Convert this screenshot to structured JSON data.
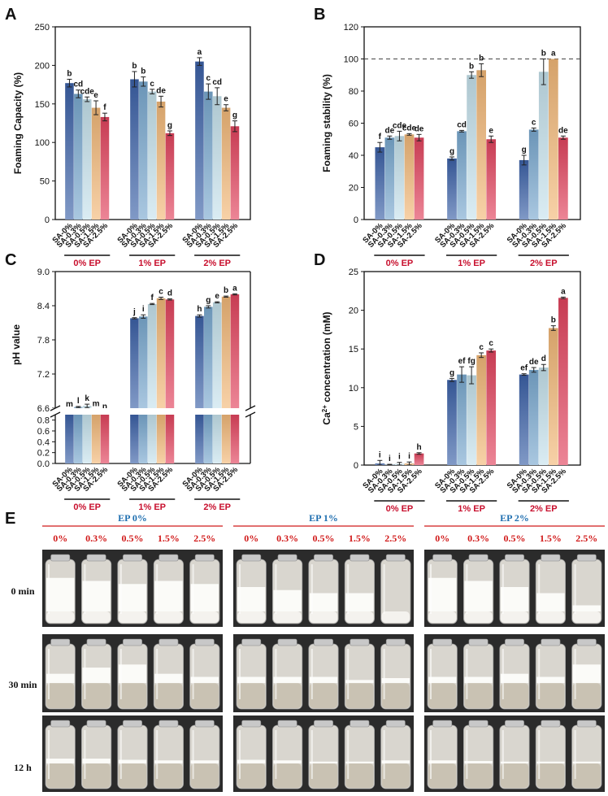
{
  "series_labels": [
    "SA-0%",
    "SA-0.3%",
    "SA-0.5%",
    "SA-1.5%",
    "SA-2.5%"
  ],
  "series_colors": [
    "#3c62a8",
    "#7aa9d0",
    "#c6e2ec",
    "#f2b878",
    "#e2445e"
  ],
  "colors": {
    "group_label": "#c8102e",
    "e_header": "#1f6fb0",
    "e_concentration": "#d11a1a"
  },
  "chart_data": [
    {
      "panel": "A",
      "type": "bar",
      "ylabel": "Foaming Capacity (%)",
      "ylim": [
        0,
        250
      ],
      "yticks": [
        0,
        50,
        100,
        150,
        200,
        250
      ],
      "categories": [
        "0% EP",
        "1% EP",
        "2% EP"
      ],
      "series": [
        {
          "name": "SA-0%",
          "values": [
            177,
            182,
            205
          ],
          "errors": [
            5,
            10,
            5
          ],
          "letters": [
            "b",
            "b",
            "a"
          ]
        },
        {
          "name": "SA-0.3%",
          "values": [
            163,
            179,
            166
          ],
          "errors": [
            5,
            6,
            10
          ],
          "letters": [
            "cd",
            "b",
            "c"
          ]
        },
        {
          "name": "SA-0.5%",
          "values": [
            156,
            166,
            160
          ],
          "errors": [
            3,
            3,
            11
          ],
          "letters": [
            "cde",
            "c",
            "cd"
          ]
        },
        {
          "name": "SA-1.5%",
          "values": [
            145,
            153,
            145
          ],
          "errors": [
            9,
            7,
            4
          ],
          "letters": [
            "e",
            "de",
            "e"
          ]
        },
        {
          "name": "SA-2.5%",
          "values": [
            133,
            112,
            121
          ],
          "errors": [
            5,
            3,
            7
          ],
          "letters": [
            "f",
            "g",
            "g"
          ]
        }
      ]
    },
    {
      "panel": "B",
      "type": "bar",
      "ylabel": "Foaming stability (%)",
      "ylim": [
        0,
        120
      ],
      "yticks": [
        0,
        20,
        40,
        60,
        80,
        100,
        120
      ],
      "reference_line": 100,
      "categories": [
        "0% EP",
        "1% EP",
        "2% EP"
      ],
      "series": [
        {
          "name": "SA-0%",
          "values": [
            45,
            38,
            37
          ],
          "errors": [
            3,
            1,
            3
          ],
          "letters": [
            "f",
            "g",
            "g"
          ]
        },
        {
          "name": "SA-0.3%",
          "values": [
            51,
            55,
            56
          ],
          "errors": [
            1,
            0.5,
            1
          ],
          "letters": [
            "de",
            "cd",
            "c"
          ]
        },
        {
          "name": "SA-0.5%",
          "values": [
            52,
            90,
            92
          ],
          "errors": [
            3,
            2,
            8
          ],
          "letters": [
            "cde",
            "b",
            "b"
          ]
        },
        {
          "name": "SA-1.5%",
          "values": [
            53,
            93,
            100
          ],
          "errors": [
            0.5,
            4,
            0
          ],
          "letters": [
            "cde",
            "b",
            "a"
          ]
        },
        {
          "name": "SA-2.5%",
          "values": [
            51,
            50,
            51
          ],
          "errors": [
            2,
            2,
            1
          ],
          "letters": [
            "de",
            "e",
            "de"
          ]
        }
      ]
    },
    {
      "panel": "C",
      "type": "bar",
      "ylabel": "pH value",
      "axis_break": true,
      "upper_range": [
        6.6,
        9.0
      ],
      "upper_ticks": [
        6.6,
        7.2,
        7.8,
        8.4,
        9.0
      ],
      "lower_range": [
        0.0,
        0.9
      ],
      "lower_ticks": [
        0.0,
        0.2,
        0.4,
        0.6,
        0.8
      ],
      "categories": [
        "0% EP",
        "1% EP",
        "2% EP"
      ],
      "series": [
        {
          "name": "SA-0%",
          "values": [
            6.56,
            8.18,
            8.22
          ],
          "errors": [
            0.01,
            0.01,
            0.02
          ],
          "letters": [
            "m",
            "j",
            "h"
          ]
        },
        {
          "name": "SA-0.3%",
          "values": [
            6.62,
            8.21,
            8.38
          ],
          "errors": [
            0.01,
            0.03,
            0.02
          ],
          "letters": [
            "l",
            "i",
            "g"
          ]
        },
        {
          "name": "SA-0.5%",
          "values": [
            6.64,
            8.43,
            8.46
          ],
          "errors": [
            0.03,
            0.01,
            0.01
          ],
          "letters": [
            "k",
            "f",
            "e"
          ]
        },
        {
          "name": "SA-1.5%",
          "values": [
            6.57,
            8.53,
            8.56
          ],
          "errors": [
            0.01,
            0.02,
            0.01
          ],
          "letters": [
            "m",
            "c",
            "b"
          ]
        },
        {
          "name": "SA-2.5%",
          "values": [
            6.52,
            8.51,
            8.6
          ],
          "errors": [
            0.01,
            0.01,
            0.01
          ],
          "letters": [
            "n",
            "d",
            "a"
          ]
        }
      ]
    },
    {
      "panel": "D",
      "type": "bar",
      "ylabel_main": "Ca",
      "ylabel_sup": "2+",
      "ylabel_rest": " concentration (mM)",
      "ylim": [
        0,
        25
      ],
      "yticks": [
        0,
        5,
        10,
        15,
        20,
        25
      ],
      "categories": [
        "0% EP",
        "1% EP",
        "2% EP"
      ],
      "series": [
        {
          "name": "SA-0%",
          "values": [
            0.2,
            11.0,
            11.7
          ],
          "errors": [
            0.4,
            0.2,
            0.1
          ],
          "letters": [
            "i",
            "g",
            "ef"
          ]
        },
        {
          "name": "SA-0.3%",
          "values": [
            0.05,
            11.7,
            12.3
          ],
          "errors": [
            0.05,
            1.0,
            0.3
          ],
          "letters": [
            "i",
            "ef",
            "de"
          ]
        },
        {
          "name": "SA-0.5%",
          "values": [
            0.15,
            11.6,
            12.6
          ],
          "errors": [
            0.2,
            1.1,
            0.4
          ],
          "letters": [
            "i",
            "fg",
            "d"
          ]
        },
        {
          "name": "SA-1.5%",
          "values": [
            0.2,
            14.2,
            17.7
          ],
          "errors": [
            0.2,
            0.3,
            0.3
          ],
          "letters": [
            "i",
            "c",
            "b"
          ]
        },
        {
          "name": "SA-2.5%",
          "values": [
            1.5,
            14.8,
            21.6
          ],
          "errors": [
            0.1,
            0.2,
            0.1
          ],
          "letters": [
            "h",
            "c",
            "a"
          ]
        }
      ]
    }
  ],
  "panel_letters": [
    "A",
    "B",
    "C",
    "D",
    "E"
  ],
  "panel_e": {
    "groups": [
      "EP 0%",
      "EP 1%",
      "EP 2%"
    ],
    "concentrations": [
      "0%",
      "0.3%",
      "0.5%",
      "1.5%",
      "2.5%"
    ],
    "times": [
      "0 min",
      "30 min",
      "12 h"
    ],
    "foam_fraction": [
      [
        [
          0.55,
          0.5,
          0.45,
          0.5,
          0.45
        ],
        [
          0.4,
          0.35,
          0.3,
          0.3,
          0.0
        ],
        [
          0.55,
          0.5,
          0.4,
          0.3,
          0.1
        ]
      ],
      [
        [
          0.15,
          0.25,
          0.3,
          0.15,
          0.1
        ],
        [
          0.1,
          0.1,
          0.1,
          0.05,
          0.08
        ],
        [
          0.1,
          0.1,
          0.15,
          0.1,
          0.3
        ]
      ],
      [
        [
          0.08,
          0.08,
          0.06,
          0.05,
          0.05
        ],
        [
          0.06,
          0.05,
          0.03,
          0.03,
          0.05
        ],
        [
          0.05,
          0.04,
          0.03,
          0.03,
          0.03
        ]
      ]
    ]
  }
}
